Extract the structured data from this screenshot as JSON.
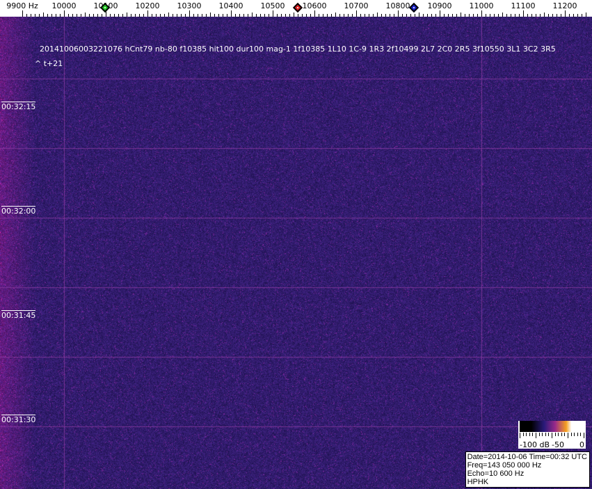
{
  "chart_data": {
    "type": "heatmap",
    "title": "",
    "x_axis": {
      "unit_label": "9900 Hz",
      "tick_labels": [
        "10000",
        "10100",
        "10200",
        "10300",
        "10400",
        "10500",
        "10600",
        "10700",
        "10800",
        "10900",
        "11000",
        "11100",
        "11200"
      ],
      "xlim": [
        9890,
        11250
      ]
    },
    "y_axis": {
      "tick_labels": [
        "00:32:15",
        "00:32:00",
        "00:31:45",
        "00:31:30"
      ]
    },
    "markers": [
      {
        "name": "green",
        "freq_hz": 10098,
        "color": "#22cc22"
      },
      {
        "name": "red",
        "freq_hz": 10560,
        "color": "#dd2222"
      },
      {
        "name": "blue",
        "freq_hz": 10838,
        "color": "#1a22cc"
      }
    ],
    "colorbar": {
      "tick_labels": [
        "-100 dB",
        "-50",
        "0"
      ],
      "range_db": [
        -100,
        0
      ]
    }
  },
  "annotation": {
    "event_line": "20141006003221076 hCnt79 nb-80 f10385 hit100 dur100 mag-1 1f10385 1L10 1C-9 1R3 2f10499 2L7 2C0 2R5 3f10550 3L1 3C2 3R5",
    "offset": "^ t+21"
  },
  "infobox": {
    "date_time": "Date=2014-10-06 Time=00:32 UTC",
    "freq": "Freq=143 050 000 Hz",
    "echo": "Echo=10 600 Hz",
    "station": "HPHK"
  },
  "colors": {
    "background": "#251a66",
    "grid": "#8a3aa0"
  }
}
